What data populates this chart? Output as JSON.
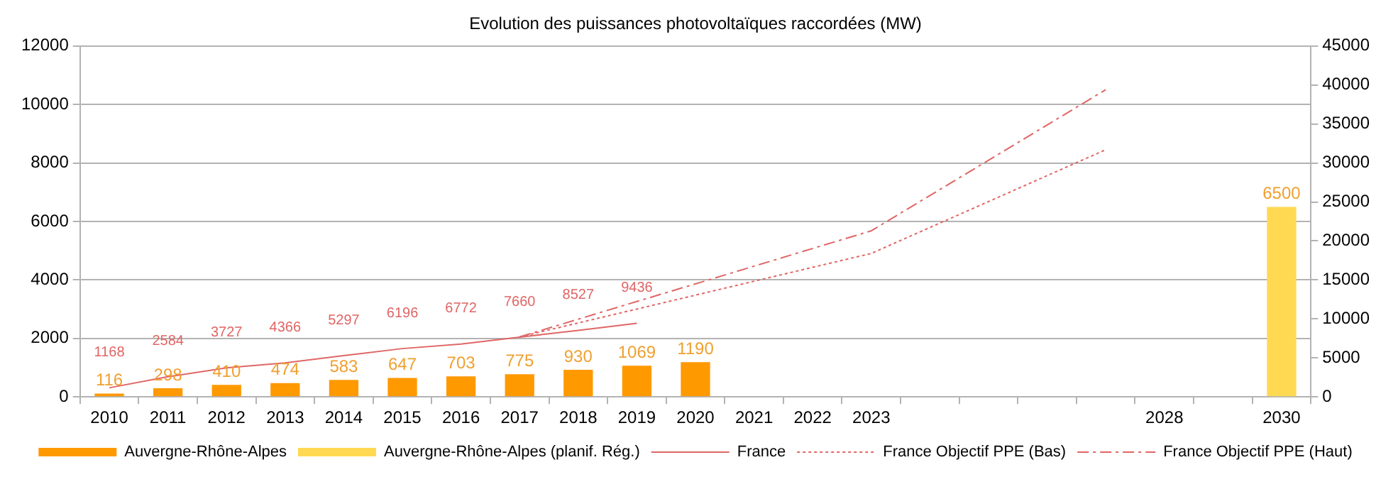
{
  "chart_data": {
    "type": "bar",
    "title": "Evolution des puissances photovoltaïques raccordées (MW)",
    "categories": [
      "2010",
      "2011",
      "2012",
      "2013",
      "2014",
      "2015",
      "2016",
      "2017",
      "2018",
      "2019",
      "2020",
      "2021",
      "2022",
      "2023",
      null,
      null,
      null,
      null,
      "2028",
      null,
      "2030"
    ],
    "series": [
      {
        "name": "Auvergne-Rhône-Alpes",
        "color": "#ff9900",
        "values": [
          116,
          298,
          410,
          474,
          583,
          647,
          703,
          775,
          930,
          1069,
          1190,
          null,
          null,
          null,
          null,
          null,
          null,
          null,
          null,
          null,
          null
        ],
        "value_labels": [
          "116",
          "298",
          "410",
          "474",
          "583",
          "647",
          "703",
          "775",
          "930",
          "1069",
          "1190",
          null,
          null,
          null,
          null,
          null,
          null,
          null,
          null,
          null,
          null
        ]
      },
      {
        "name": "Auvergne-Rhône-Alpes (planif. Rég.)",
        "color": "#ffd952",
        "values": [
          null,
          null,
          null,
          null,
          null,
          null,
          null,
          null,
          null,
          null,
          null,
          null,
          null,
          null,
          null,
          null,
          null,
          null,
          null,
          null,
          6500
        ],
        "value_labels": [
          null,
          null,
          null,
          null,
          null,
          null,
          null,
          null,
          null,
          null,
          null,
          null,
          null,
          null,
          null,
          null,
          null,
          null,
          null,
          null,
          "6500"
        ]
      },
      {
        "name": "France",
        "type": "line",
        "axis": "y2",
        "color": "#e06666",
        "line_style": "solid",
        "values": [
          1168,
          2584,
          3727,
          4366,
          5297,
          6196,
          6772,
          7660,
          8527,
          9436,
          null,
          null,
          null,
          null,
          null,
          null,
          null,
          null,
          null,
          null,
          null
        ],
        "value_labels": [
          "1168",
          "2584",
          "3727",
          "4366",
          "5297",
          "6196",
          "6772",
          "7660",
          "8527",
          "9436",
          null,
          null,
          null,
          null,
          null,
          null,
          null,
          null,
          null,
          null,
          null
        ]
      },
      {
        "name": "France Objectif PPE (Bas)",
        "type": "line",
        "axis": "y2",
        "color": "#e06666",
        "line_style": "dotted",
        "values": [
          null,
          null,
          null,
          null,
          null,
          null,
          null,
          7700,
          null,
          null,
          null,
          null,
          null,
          18400,
          null,
          null,
          null,
          31700,
          null,
          null,
          null
        ]
      },
      {
        "name": "France Objectif PPE (Haut)",
        "type": "line",
        "axis": "y2",
        "color": "#e06666",
        "line_style": "dashdot",
        "values": [
          null,
          null,
          null,
          null,
          null,
          null,
          null,
          7700,
          null,
          null,
          null,
          null,
          null,
          21300,
          null,
          null,
          null,
          39400,
          null,
          null,
          null
        ]
      }
    ],
    "ylim": [
      0,
      12000
    ],
    "yticks": [
      0,
      2000,
      4000,
      6000,
      8000,
      10000,
      12000
    ],
    "y2lim": [
      0,
      45000
    ],
    "y2ticks": [
      0,
      5000,
      10000,
      15000,
      20000,
      25000,
      30000,
      35000,
      40000,
      45000
    ],
    "grid": "y",
    "legend": "bottom",
    "marker": "none"
  }
}
